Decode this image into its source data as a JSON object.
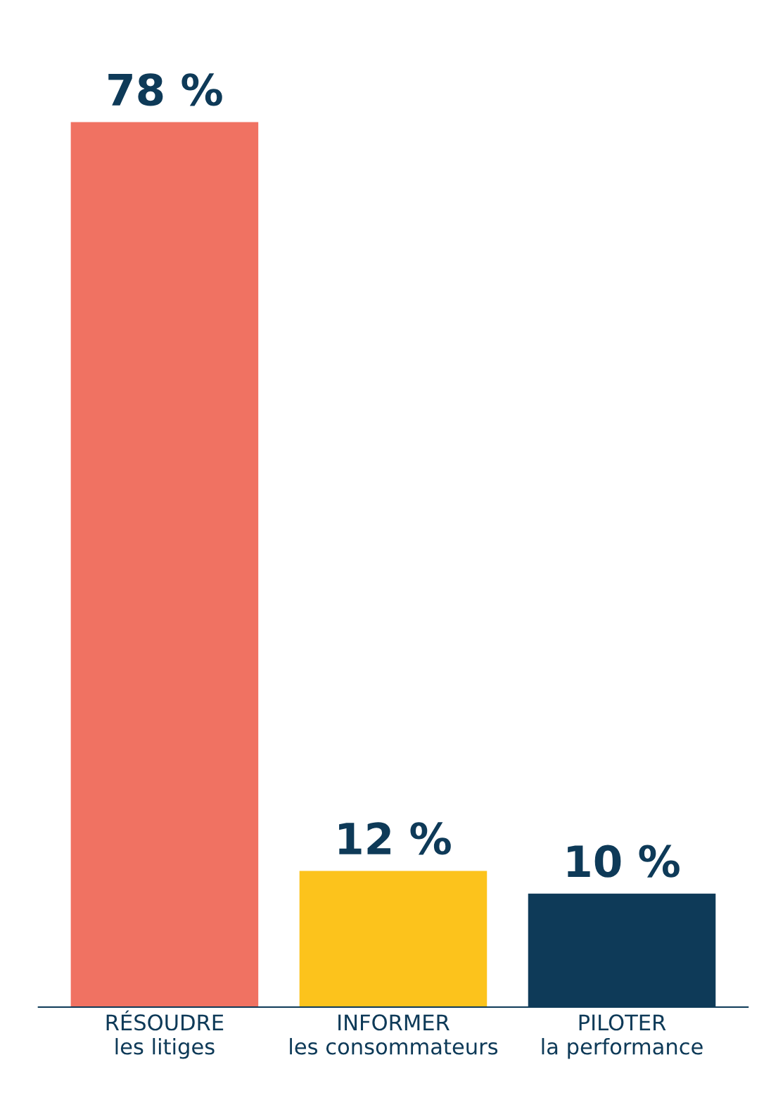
{
  "chart_data": {
    "type": "bar",
    "categories": [
      "RÉSOUDRE\nles litiges",
      "INFORMER\nles consommateurs",
      "PILOTER\nla performance"
    ],
    "values": [
      78,
      12,
      10
    ],
    "colors": [
      "#f07262",
      "#fcc31c",
      "#0e3a58"
    ],
    "data_labels": true,
    "value_labels": [
      "78 %",
      "12 %",
      "10 %"
    ],
    "grid": false,
    "legend": false
  }
}
